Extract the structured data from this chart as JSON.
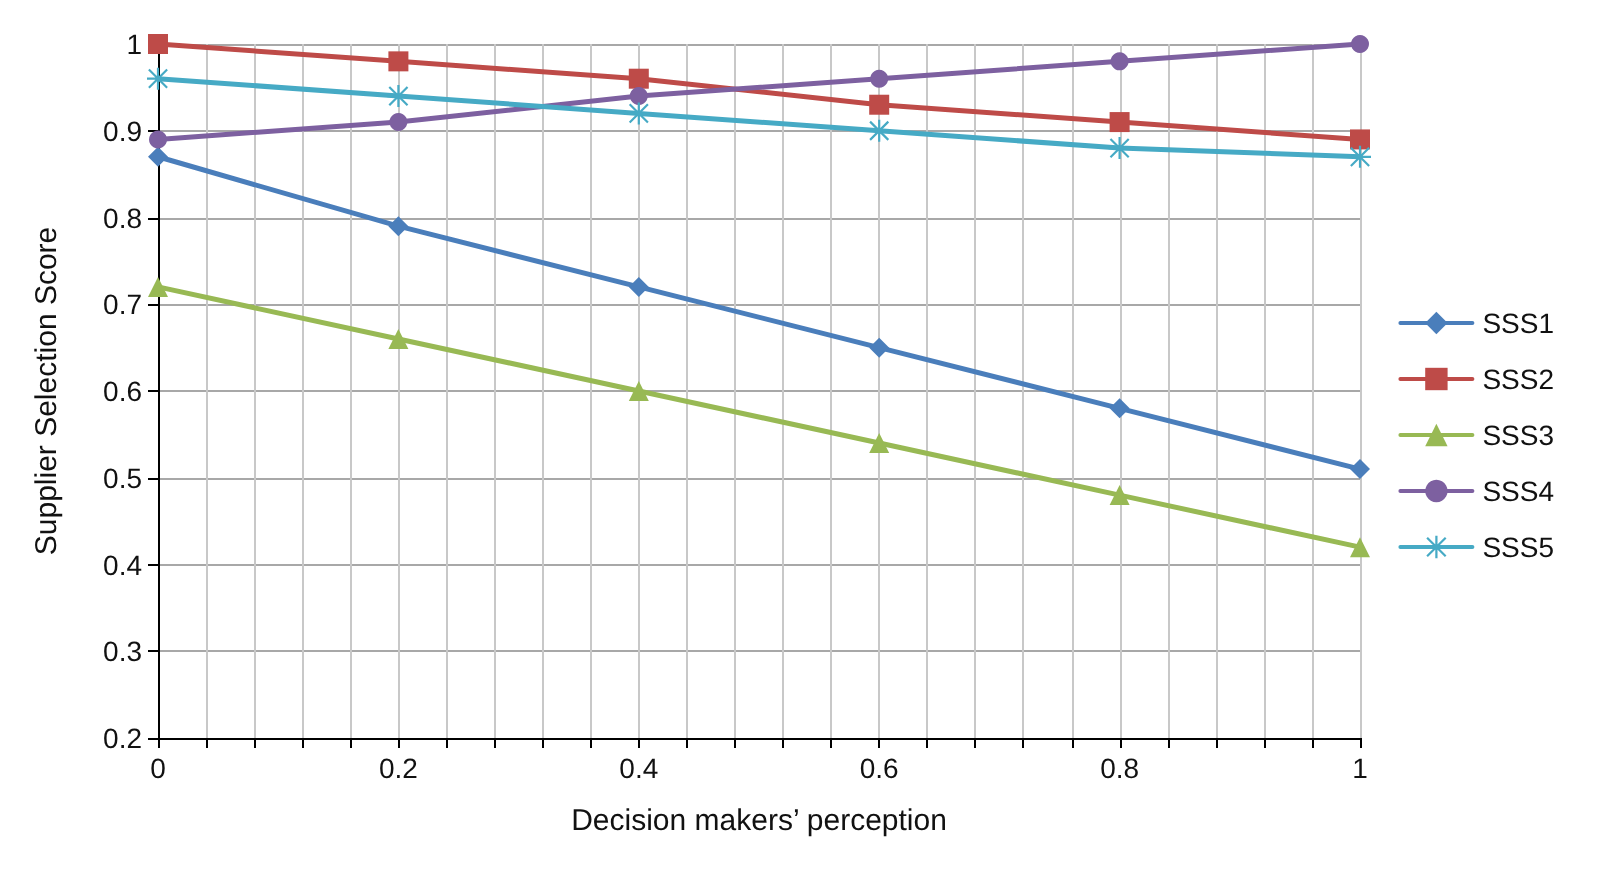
{
  "chart_data": {
    "type": "line",
    "xlabel": "Decision makers’ perception",
    "ylabel": "Supplier Selection Score",
    "x": [
      0,
      0.2,
      0.4,
      0.6,
      0.8,
      1
    ],
    "series": [
      {
        "name": "SSS1",
        "color": "#4a7ebb",
        "marker": "diamond",
        "values": [
          0.87,
          0.79,
          0.72,
          0.65,
          0.58,
          0.51
        ]
      },
      {
        "name": "SSS2",
        "color": "#be4b48",
        "marker": "square",
        "values": [
          1.0,
          0.98,
          0.96,
          0.93,
          0.91,
          0.89
        ]
      },
      {
        "name": "SSS3",
        "color": "#98b954",
        "marker": "triangle",
        "values": [
          0.72,
          0.66,
          0.6,
          0.54,
          0.48,
          0.42
        ]
      },
      {
        "name": "SSS4",
        "color": "#7d60a0",
        "marker": "circle",
        "values": [
          0.89,
          0.91,
          0.94,
          0.96,
          0.98,
          1.0
        ]
      },
      {
        "name": "SSS5",
        "color": "#46aac5",
        "marker": "cross",
        "values": [
          0.96,
          0.94,
          0.92,
          0.9,
          0.88,
          0.87
        ]
      }
    ],
    "xlim": [
      0,
      1
    ],
    "xticks": [
      0,
      {
        "value": 0.04,
        "label": null
      },
      {
        "value": 0.08,
        "label": null
      },
      {
        "value": 0.12,
        "label": null
      },
      {
        "value": 0.16,
        "label": null
      },
      0.2,
      {
        "value": 0.24,
        "label": null
      },
      {
        "value": 0.28,
        "label": null
      },
      {
        "value": 0.32,
        "label": null
      },
      {
        "value": 0.36,
        "label": null
      },
      0.4,
      {
        "value": 0.44,
        "label": null
      },
      {
        "value": 0.48,
        "label": null
      },
      {
        "value": 0.52,
        "label": null
      },
      {
        "value": 0.56,
        "label": null
      },
      0.6,
      {
        "value": 0.64,
        "label": null
      },
      {
        "value": 0.68,
        "label": null
      },
      {
        "value": 0.72,
        "label": null
      },
      {
        "value": 0.76,
        "label": null
      },
      0.8,
      {
        "value": 0.84,
        "label": null
      },
      {
        "value": 0.88,
        "label": null
      },
      {
        "value": 0.92,
        "label": null
      },
      {
        "value": 0.96,
        "label": null
      },
      1
    ],
    "ylim": [
      0.2,
      1
    ],
    "yticks": [
      0.2,
      0.3,
      0.4,
      0.5,
      0.6,
      0.7,
      0.8,
      0.9,
      1
    ],
    "grid": true,
    "legend": "right",
    "line_style": "solid"
  }
}
